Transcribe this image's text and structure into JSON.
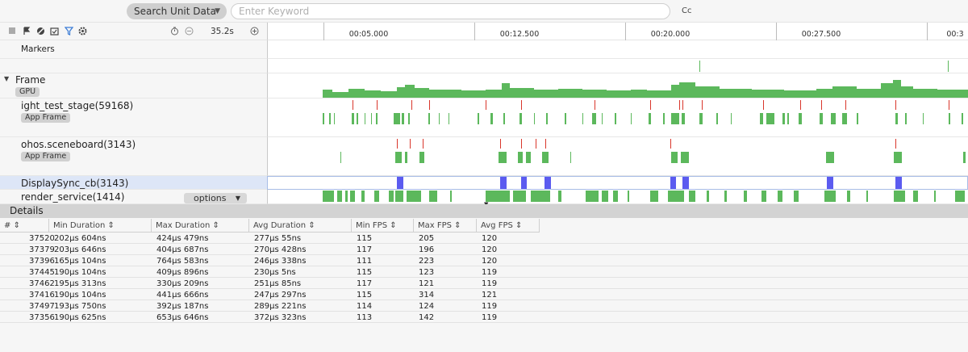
{
  "search": {
    "select_label": "Search Unit Data",
    "placeholder": "Enter Keyword",
    "cc_label": "Cc"
  },
  "toolbar": {
    "time": "35.2s"
  },
  "ruler": {
    "labels": [
      "00:05.000",
      "00:12.500",
      "00:20.000",
      "00:27.500",
      "00:3"
    ]
  },
  "tracks": {
    "markers": "Markers",
    "frame": "Frame",
    "gpu_tag": "GPU",
    "light_test": "ight_test_stage(59168)",
    "app_frame_tag": "App Frame",
    "sceneboard": "ohos.sceneboard(3143)",
    "app_frame_tag2": "App Frame",
    "displaysync": "DisplaySync_cb(3143)",
    "render_service": "render_service(1414)",
    "options": "options"
  },
  "colors": {
    "green": "#5cb85c",
    "red": "#d9362b",
    "blue": "#5b5bf0",
    "selection": "#dde6f7"
  },
  "details": {
    "title": "Details",
    "columns": [
      "#",
      "Min Duration",
      "Max Duration",
      "Avg Duration",
      "Min FPS",
      "Max FPS",
      "Avg FPS"
    ],
    "rows": [
      [
        "37520",
        "202μs 604ns",
        "424μs 479ns",
        "277μs 55ns",
        "115",
        "205",
        "120"
      ],
      [
        "37379",
        "203μs 646ns",
        "404μs 687ns",
        "270μs 428ns",
        "117",
        "196",
        "120"
      ],
      [
        "37396",
        "165μs 104ns",
        "764μs 583ns",
        "246μs 338ns",
        "111",
        "223",
        "120"
      ],
      [
        "37445",
        "190μs 104ns",
        "409μs 896ns",
        "230μs 5ns",
        "115",
        "123",
        "119"
      ],
      [
        "37462",
        "195μs 313ns",
        "330μs 209ns",
        "251μs 85ns",
        "117",
        "121",
        "119"
      ],
      [
        "37416",
        "190μs 104ns",
        "441μs 666ns",
        "247μs 297ns",
        "115",
        "314",
        "121"
      ],
      [
        "37497",
        "193μs 750ns",
        "392μs 187ns",
        "289μs 221ns",
        "114",
        "124",
        "119"
      ],
      [
        "37356",
        "190μs 625ns",
        "653μs 646ns",
        "372μs 323ns",
        "113",
        "142",
        "119"
      ]
    ]
  }
}
